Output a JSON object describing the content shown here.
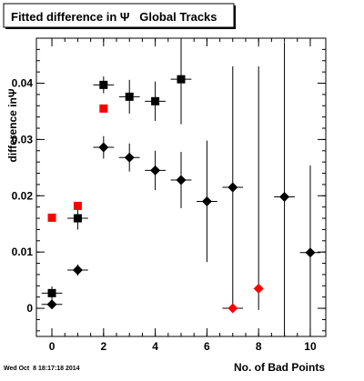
{
  "chart_data": {
    "type": "scatter",
    "title": "Fitted difference in Ψ   Global Tracks",
    "xlabel": "No. of Bad Points",
    "ylabel": "difference inΨ",
    "xlim": [
      -0.6,
      10.6
    ],
    "ylim": [
      -0.005,
      0.048
    ],
    "xticks": [
      0,
      2,
      4,
      6,
      8,
      10
    ],
    "xtick_labels": [
      "0",
      "2",
      "4",
      "6",
      "8",
      "10"
    ],
    "yticks": [
      0,
      0.01,
      0.02,
      0.03,
      0.04
    ],
    "ytick_labels": [
      "0",
      "0.01",
      "0.02",
      "0.03",
      "0.04"
    ],
    "grid": false,
    "series": [
      {
        "marker": "square",
        "color": "#000000",
        "points": [
          {
            "x": 0,
            "y": 0.0027,
            "xerr": 0.4,
            "yerr": 0.0012
          },
          {
            "x": 1,
            "y": 0.016,
            "xerr": 0.4,
            "yerr": 0.002
          },
          {
            "x": 2,
            "y": 0.0397,
            "xerr": 0.4,
            "yerr": 0.0015
          },
          {
            "x": 3,
            "y": 0.0376,
            "xerr": 0.4,
            "yerr": 0.003
          },
          {
            "x": 4,
            "y": 0.0368,
            "xerr": 0.4,
            "yerr": 0.0035
          },
          {
            "x": 5,
            "y": 0.0407,
            "xerr": 0.4,
            "yerr": 0.008
          }
        ]
      },
      {
        "marker": "square",
        "color": "#ff0000",
        "points": [
          {
            "x": 0,
            "y": 0.0161,
            "xerr": 0.0,
            "yerr": 0.0
          },
          {
            "x": 1,
            "y": 0.0182,
            "xerr": 0.0,
            "yerr": 0.0
          },
          {
            "x": 2,
            "y": 0.0355,
            "xerr": 0.0,
            "yerr": 0.0
          }
        ]
      },
      {
        "marker": "diamond",
        "color": "#000000",
        "points": [
          {
            "x": 0,
            "y": 0.0007,
            "xerr": 0.4,
            "yerr": 0.0
          },
          {
            "x": 1,
            "y": 0.0068,
            "xerr": 0.4,
            "yerr": 0.001
          },
          {
            "x": 2,
            "y": 0.0286,
            "xerr": 0.4,
            "yerr": 0.002
          },
          {
            "x": 3,
            "y": 0.0268,
            "xerr": 0.4,
            "yerr": 0.0025
          },
          {
            "x": 4,
            "y": 0.0245,
            "xerr": 0.4,
            "yerr": 0.0035
          },
          {
            "x": 5,
            "y": 0.0228,
            "xerr": 0.4,
            "yerr": 0.005
          },
          {
            "x": 6,
            "y": 0.019,
            "xerr": 0.4,
            "yerr": 0.0108
          },
          {
            "x": 7,
            "y": 0.0215,
            "xerr": 0.4,
            "yerr": 0.0215
          },
          {
            "x": 9,
            "y": 0.0198,
            "xerr": 0.4,
            "yerr": 0.0275
          },
          {
            "x": 10,
            "y": 0.0099,
            "xerr": 0.4,
            "yerr": 0.0155
          }
        ]
      },
      {
        "marker": "diamond",
        "color": "#ff0000",
        "points": [
          {
            "x": 7,
            "y": 0.0,
            "xerr": 0.4,
            "yerr": 0.0
          },
          {
            "x": 8,
            "y": 0.0035,
            "xerr": 0.0,
            "yerr": 0.0
          }
        ]
      }
    ],
    "vertical_error_only": [
      {
        "x": 8,
        "ylo": -0.0003,
        "yhi": 0.043
      }
    ]
  },
  "timestamp": "Wed Oct  8 18:17:18 2014"
}
